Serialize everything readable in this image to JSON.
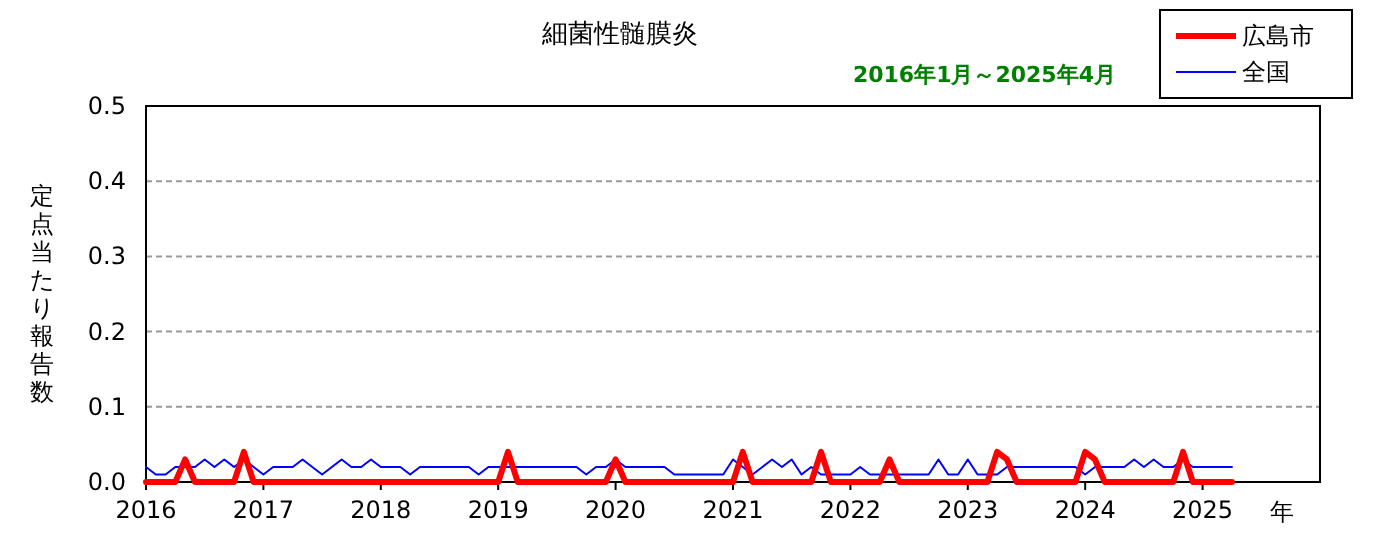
{
  "chart_data": {
    "type": "line",
    "title": "細菌性髄膜炎",
    "subtitle": "2016年1月～2025年4月",
    "xlabel": "年",
    "ylabel": "定点当たり報告数",
    "x": [
      "2016-01",
      "2016-02",
      "2016-03",
      "2016-04",
      "2016-05",
      "2016-06",
      "2016-07",
      "2016-08",
      "2016-09",
      "2016-10",
      "2016-11",
      "2016-12",
      "2017-01",
      "2017-02",
      "2017-03",
      "2017-04",
      "2017-05",
      "2017-06",
      "2017-07",
      "2017-08",
      "2017-09",
      "2017-10",
      "2017-11",
      "2017-12",
      "2018-01",
      "2018-02",
      "2018-03",
      "2018-04",
      "2018-05",
      "2018-06",
      "2018-07",
      "2018-08",
      "2018-09",
      "2018-10",
      "2018-11",
      "2018-12",
      "2019-01",
      "2019-02",
      "2019-03",
      "2019-04",
      "2019-05",
      "2019-06",
      "2019-07",
      "2019-08",
      "2019-09",
      "2019-10",
      "2019-11",
      "2019-12",
      "2020-01",
      "2020-02",
      "2020-03",
      "2020-04",
      "2020-05",
      "2020-06",
      "2020-07",
      "2020-08",
      "2020-09",
      "2020-10",
      "2020-11",
      "2020-12",
      "2021-01",
      "2021-02",
      "2021-03",
      "2021-04",
      "2021-05",
      "2021-06",
      "2021-07",
      "2021-08",
      "2021-09",
      "2021-10",
      "2021-11",
      "2021-12",
      "2022-01",
      "2022-02",
      "2022-03",
      "2022-04",
      "2022-05",
      "2022-06",
      "2022-07",
      "2022-08",
      "2022-09",
      "2022-10",
      "2022-11",
      "2022-12",
      "2023-01",
      "2023-02",
      "2023-03",
      "2023-04",
      "2023-05",
      "2023-06",
      "2023-07",
      "2023-08",
      "2023-09",
      "2023-10",
      "2023-11",
      "2023-12",
      "2024-01",
      "2024-02",
      "2024-03",
      "2024-04",
      "2024-05",
      "2024-06",
      "2024-07",
      "2024-08",
      "2024-09",
      "2024-10",
      "2024-11",
      "2024-12",
      "2025-01",
      "2025-02",
      "2025-03",
      "2025-04"
    ],
    "series": [
      {
        "name": "広島市",
        "color": "#ff0000",
        "values": [
          0,
          0,
          0,
          0,
          0.03,
          0,
          0,
          0,
          0,
          0,
          0.04,
          0,
          0,
          0,
          0,
          0,
          0,
          0,
          0,
          0,
          0,
          0,
          0,
          0,
          0,
          0,
          0,
          0,
          0,
          0,
          0,
          0,
          0,
          0,
          0,
          0,
          0,
          0.04,
          0,
          0,
          0,
          0,
          0,
          0,
          0,
          0,
          0,
          0,
          0.03,
          0,
          0,
          0,
          0,
          0,
          0,
          0,
          0,
          0,
          0,
          0,
          0,
          0.04,
          0,
          0,
          0,
          0,
          0,
          0,
          0,
          0.04,
          0,
          0,
          0,
          0,
          0,
          0,
          0.03,
          0,
          0,
          0,
          0,
          0,
          0,
          0,
          0,
          0,
          0,
          0.04,
          0.03,
          0,
          0,
          0,
          0,
          0,
          0,
          0,
          0.04,
          0.03,
          0,
          0,
          0,
          0,
          0,
          0,
          0,
          0,
          0.04,
          0,
          0,
          0,
          0,
          0
        ]
      },
      {
        "name": "全国",
        "color": "#0000ff",
        "values": [
          0.02,
          0.01,
          0.01,
          0.02,
          0.02,
          0.02,
          0.03,
          0.02,
          0.03,
          0.02,
          0.03,
          0.02,
          0.01,
          0.02,
          0.02,
          0.02,
          0.03,
          0.02,
          0.01,
          0.02,
          0.03,
          0.02,
          0.02,
          0.03,
          0.02,
          0.02,
          0.02,
          0.01,
          0.02,
          0.02,
          0.02,
          0.02,
          0.02,
          0.02,
          0.01,
          0.02,
          0.02,
          0.02,
          0.02,
          0.02,
          0.02,
          0.02,
          0.02,
          0.02,
          0.02,
          0.01,
          0.02,
          0.02,
          0.03,
          0.02,
          0.02,
          0.02,
          0.02,
          0.02,
          0.01,
          0.01,
          0.01,
          0.01,
          0.01,
          0.01,
          0.03,
          0.02,
          0.01,
          0.02,
          0.03,
          0.02,
          0.03,
          0.01,
          0.02,
          0.01,
          0.01,
          0.01,
          0.01,
          0.02,
          0.01,
          0.01,
          0.01,
          0.01,
          0.01,
          0.01,
          0.01,
          0.03,
          0.01,
          0.01,
          0.03,
          0.01,
          0.01,
          0.01,
          0.02,
          0.02,
          0.02,
          0.02,
          0.02,
          0.02,
          0.02,
          0.02,
          0.01,
          0.02,
          0.02,
          0.02,
          0.02,
          0.03,
          0.02,
          0.03,
          0.02,
          0.02,
          0.03,
          0.02,
          0.02,
          0.02,
          0.02,
          0.02
        ]
      }
    ],
    "xlim": [
      "2016",
      "2026"
    ],
    "xticks": [
      "2016",
      "2017",
      "2018",
      "2019",
      "2020",
      "2021",
      "2022",
      "2023",
      "2024",
      "2025"
    ],
    "ylim": [
      0,
      0.5
    ],
    "yticks": [
      {
        "value": 0,
        "label": "0.0"
      },
      {
        "value": 0.1,
        "label": "0.1"
      },
      {
        "value": 0.2,
        "label": "0.2"
      },
      {
        "value": 0.3,
        "label": "0.3"
      },
      {
        "value": 0.4,
        "label": "0.4"
      },
      {
        "value": 0.5,
        "label": "0.5"
      }
    ],
    "grid": "y",
    "legend": "top right",
    "marker": "none",
    "line_style": "solid"
  }
}
